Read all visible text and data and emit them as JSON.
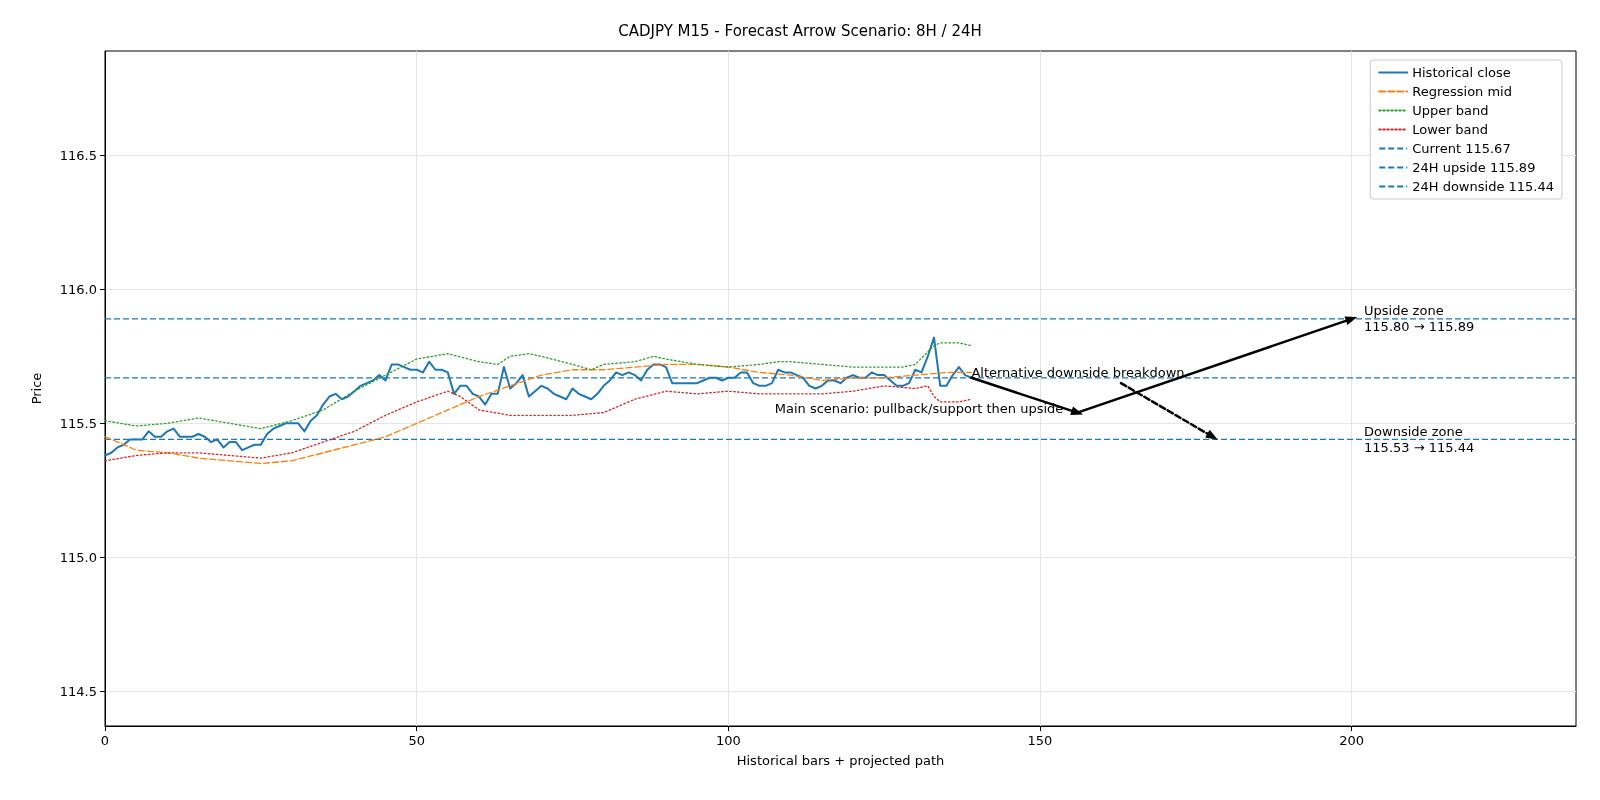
{
  "chart_data": {
    "type": "line",
    "title": "CADJPY M15 - Forecast Arrow Scenario: 8H / 24H",
    "xlabel": "Historical bars + projected path",
    "ylabel": "Price",
    "xlim": [
      0,
      236
    ],
    "xticks": [
      0,
      50,
      100,
      150,
      200
    ],
    "ylim": [
      114.37,
      116.89
    ],
    "yticks": [
      114.5,
      {
        "value": 115,
        "label": "115.0"
      },
      115.5,
      {
        "value": 116,
        "label": "116.0"
      },
      116.5
    ],
    "grid": true,
    "legend": "top right",
    "series": [
      {
        "name": "Historical close",
        "color": "#1f77b4",
        "line_style": "solid",
        "x": [
          0,
          1,
          2,
          3,
          4,
          5,
          6,
          7,
          8,
          9,
          10,
          11,
          12,
          13,
          14,
          15,
          16,
          17,
          18,
          19,
          20,
          21,
          22,
          23,
          24,
          25,
          26,
          27,
          28,
          29,
          30,
          31,
          32,
          33,
          34,
          35,
          36,
          37,
          38,
          39,
          40,
          41,
          42,
          43,
          44,
          45,
          46,
          47,
          48,
          49,
          50,
          51,
          52,
          53,
          54,
          55,
          56,
          57,
          58,
          59,
          60,
          61,
          62,
          63,
          64,
          65,
          66,
          67,
          68,
          69,
          70,
          71,
          72,
          73,
          74,
          75,
          76,
          77,
          78,
          79,
          80,
          81,
          82,
          83,
          84,
          85,
          86,
          87,
          88,
          89,
          90,
          91,
          92,
          93,
          94,
          95,
          96,
          97,
          98,
          99,
          100,
          101,
          102,
          103,
          104,
          105,
          106,
          107,
          108,
          109,
          110,
          111,
          112,
          113,
          114,
          115,
          116,
          117,
          118,
          119,
          120,
          121,
          122,
          123,
          124,
          125,
          126,
          127,
          128,
          129,
          130,
          131,
          132,
          133,
          134,
          135,
          136,
          137,
          138,
          139
        ],
        "values": [
          115.38,
          115.39,
          115.41,
          115.42,
          115.44,
          115.44,
          115.44,
          115.47,
          115.45,
          115.45,
          115.47,
          115.48,
          115.45,
          115.45,
          115.45,
          115.46,
          115.45,
          115.43,
          115.44,
          115.41,
          115.43,
          115.43,
          115.4,
          115.41,
          115.42,
          115.42,
          115.46,
          115.48,
          115.49,
          115.5,
          115.5,
          115.5,
          115.47,
          115.51,
          115.53,
          115.57,
          115.6,
          115.61,
          115.59,
          115.6,
          115.62,
          115.64,
          115.65,
          115.66,
          115.68,
          115.66,
          115.72,
          115.72,
          115.71,
          115.7,
          115.7,
          115.69,
          115.73,
          115.7,
          115.7,
          115.69,
          115.61,
          115.64,
          115.64,
          115.61,
          115.6,
          115.57,
          115.61,
          115.61,
          115.71,
          115.63,
          115.65,
          115.68,
          115.6,
          115.62,
          115.64,
          115.63,
          115.61,
          115.6,
          115.59,
          115.63,
          115.61,
          115.6,
          115.59,
          115.61,
          115.64,
          115.66,
          115.69,
          115.68,
          115.69,
          115.68,
          115.66,
          115.7,
          115.72,
          115.72,
          115.71,
          115.65,
          115.65,
          115.65,
          115.65,
          115.65,
          115.66,
          115.67,
          115.67,
          115.66,
          115.67,
          115.67,
          115.69,
          115.69,
          115.65,
          115.64,
          115.64,
          115.65,
          115.7,
          115.69,
          115.69,
          115.68,
          115.67,
          115.64,
          115.63,
          115.64,
          115.66,
          115.66,
          115.65,
          115.67,
          115.68,
          115.67,
          115.67,
          115.69,
          115.68,
          115.68,
          115.66,
          115.64,
          115.64,
          115.65,
          115.7,
          115.69,
          115.75,
          115.82,
          115.64,
          115.64,
          115.68,
          115.71,
          115.68,
          115.67
        ]
      },
      {
        "name": "Regression mid",
        "color": "#ff7f0e",
        "line_style": "dashed",
        "x": [
          0,
          5,
          10,
          15,
          20,
          25,
          30,
          35,
          40,
          45,
          50,
          55,
          60,
          65,
          70,
          75,
          80,
          85,
          90,
          95,
          100,
          105,
          110,
          115,
          120,
          125,
          130,
          135,
          139
        ],
        "values": [
          115.45,
          115.4,
          115.39,
          115.37,
          115.36,
          115.35,
          115.36,
          115.39,
          115.42,
          115.45,
          115.5,
          115.55,
          115.6,
          115.64,
          115.68,
          115.7,
          115.7,
          115.71,
          115.72,
          115.72,
          115.71,
          115.69,
          115.68,
          115.66,
          115.67,
          115.67,
          115.68,
          115.69,
          115.69
        ]
      },
      {
        "name": "Upper band",
        "color": "#2ca02c",
        "line_style": "dotted",
        "x": [
          0,
          5,
          10,
          15,
          20,
          25,
          30,
          35,
          40,
          45,
          50,
          55,
          60,
          63,
          65,
          68,
          70,
          75,
          78,
          80,
          85,
          88,
          90,
          95,
          100,
          105,
          108,
          110,
          115,
          120,
          125,
          128,
          130,
          133,
          134,
          137,
          139
        ],
        "values": [
          115.51,
          115.49,
          115.5,
          115.52,
          115.5,
          115.48,
          115.51,
          115.55,
          115.62,
          115.68,
          115.74,
          115.76,
          115.73,
          115.72,
          115.75,
          115.76,
          115.75,
          115.72,
          115.7,
          115.72,
          115.73,
          115.75,
          115.74,
          115.72,
          115.71,
          115.72,
          115.73,
          115.73,
          115.72,
          115.71,
          115.71,
          115.71,
          115.72,
          115.79,
          115.8,
          115.8,
          115.79
        ]
      },
      {
        "name": "Lower band",
        "color": "#d62728",
        "line_style": "dotted",
        "x": [
          0,
          5,
          10,
          15,
          20,
          25,
          30,
          35,
          40,
          45,
          50,
          55,
          57,
          60,
          65,
          70,
          75,
          80,
          85,
          90,
          95,
          100,
          105,
          110,
          115,
          120,
          125,
          130,
          132,
          133,
          134,
          137,
          139
        ],
        "values": [
          115.36,
          115.38,
          115.39,
          115.39,
          115.38,
          115.37,
          115.39,
          115.43,
          115.47,
          115.53,
          115.58,
          115.62,
          115.6,
          115.55,
          115.53,
          115.53,
          115.53,
          115.54,
          115.59,
          115.62,
          115.61,
          115.62,
          115.61,
          115.61,
          115.61,
          115.62,
          115.64,
          115.63,
          115.64,
          115.6,
          115.58,
          115.58,
          115.59
        ]
      },
      {
        "type": "line",
        "color": "#000000",
        "line_style": "solid",
        "marker": "triangle",
        "x": [
          139,
          156,
          200
        ],
        "values": [
          115.67,
          115.54,
          115.89
        ]
      },
      {
        "type": "line",
        "color": "#000000",
        "line_style": "dashed",
        "marker": "triangle",
        "x": [
          163,
          177.7
        ],
        "values": [
          115.65,
          115.45
        ]
      }
    ],
    "ref_lines": [
      {
        "axis": "y",
        "value": 115.67,
        "label": "Current 115.67",
        "color": "#1f77b4",
        "line_style": "dashed"
      },
      {
        "axis": "y",
        "value": 115.89,
        "label": "24H upside 115.89",
        "color": "#1f77b4",
        "line_style": "dashed"
      },
      {
        "axis": "y",
        "value": 115.44,
        "label": "24H downside 115.44",
        "color": "#1f77b4",
        "line_style": "dashed"
      }
    ],
    "annotations": [
      {
        "text": "Upside zone\n115.80 → 115.89",
        "x": 202,
        "y": 115.89
      },
      {
        "text": "Downside zone\n115.53 → 115.44",
        "x": 202,
        "y": 115.44
      },
      {
        "text": "Alternative downside breakdown",
        "x": 139,
        "y": 115.67
      },
      {
        "text": "Main scenario: pullback/support then upside",
        "x": 156,
        "y": 115.54
      }
    ]
  }
}
